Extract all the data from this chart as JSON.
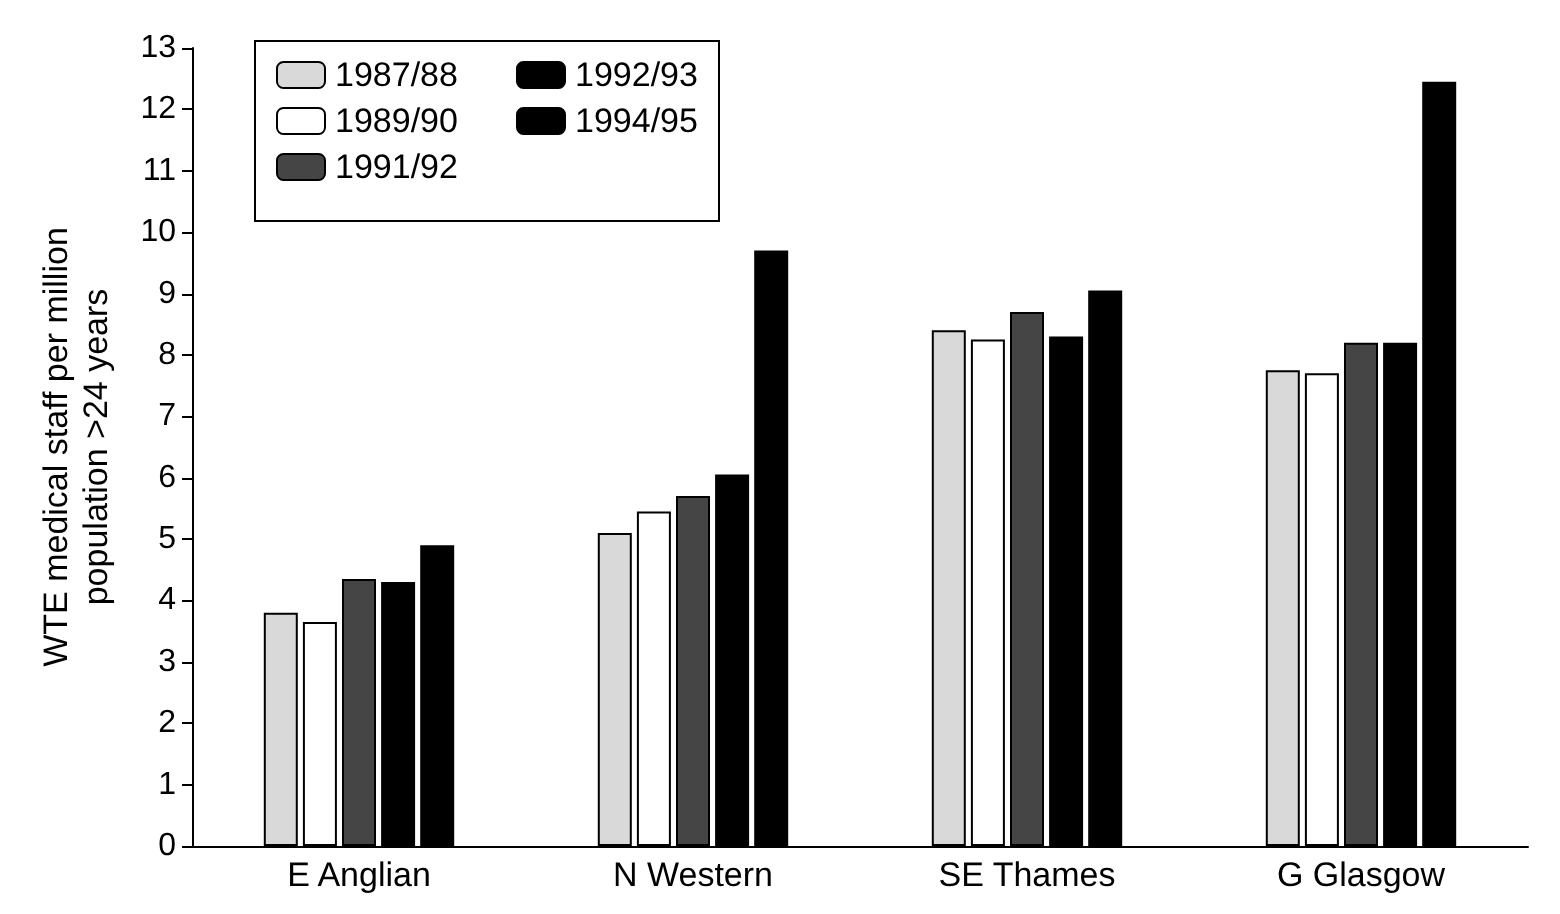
{
  "chart_data": {
    "type": "bar",
    "ylabel": "WTE medical staff per million\npopulation >24 years",
    "categories": [
      "E Anglian",
      "N Western",
      "SE Thames",
      "G Glasgow"
    ],
    "series": [
      {
        "name": "1987/88",
        "color": "#d9d9d9",
        "values": [
          3.8,
          5.1,
          8.4,
          7.75
        ]
      },
      {
        "name": "1989/90",
        "color": "#ffffff",
        "values": [
          3.65,
          5.45,
          8.25,
          7.7
        ]
      },
      {
        "name": "1991/92",
        "color": "#454545",
        "values": [
          4.35,
          5.7,
          8.7,
          8.2
        ]
      },
      {
        "name": "1992/93",
        "color": "#000000",
        "values": [
          4.3,
          6.05,
          8.3,
          8.2
        ]
      },
      {
        "name": "1994/95",
        "color": "#000000",
        "values": [
          4.9,
          9.7,
          9.05,
          12.45
        ]
      }
    ],
    "ylim": [
      0,
      13
    ],
    "yticks": [
      0,
      1,
      2,
      3,
      4,
      5,
      6,
      7,
      8,
      9,
      10,
      11,
      12,
      13
    ],
    "grid": false,
    "legend": "top left"
  }
}
